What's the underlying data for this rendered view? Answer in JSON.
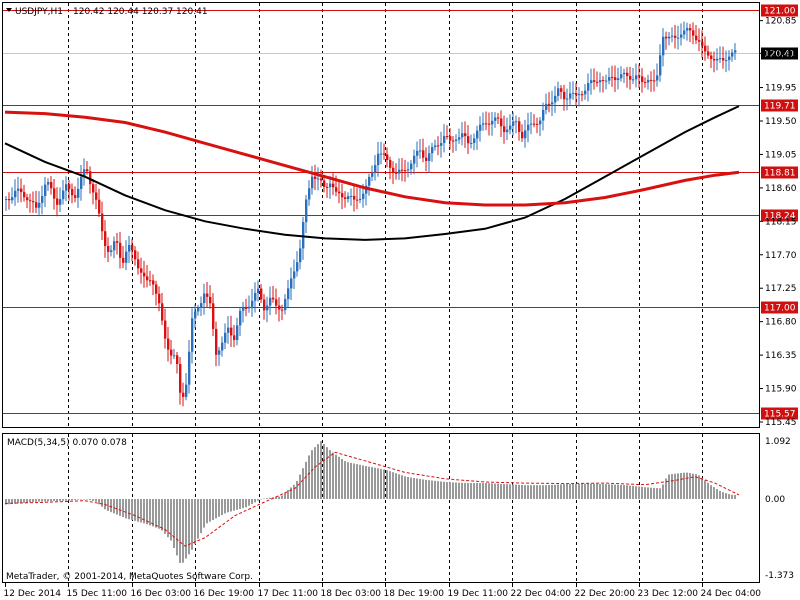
{
  "header": {
    "symbol": "USDJPY,H1",
    "ohlc": "120.42 120.44 120.37 120.41"
  },
  "copyright": "MetaTrader, © 2001-2014, MetaQuotes Software Corp.",
  "colors": {
    "bull": "#2a6fbd",
    "bear": "#d91010",
    "level": "#d01010",
    "ma_slow": "#000000",
    "ma_fast": "#d91010",
    "macd_hist": "#9a9a9a",
    "macd_signal": "#d91010"
  },
  "chart_data": [
    {
      "type": "candlestick",
      "title": "USDJPY,H1",
      "ylim": [
        115.45,
        121.0
      ],
      "y_ticks": [
        "120.85",
        "120.41",
        "119.95",
        "119.50",
        "119.05",
        "118.60",
        "118.15",
        "117.70",
        "117.25",
        "116.80",
        "116.35",
        "115.90",
        "115.45"
      ],
      "x_ticks": [
        "12 Dec 2014",
        "15 Dec 11:00",
        "16 Dec 03:00",
        "16 Dec 19:00",
        "17 Dec 11:00",
        "18 Dec 03:00",
        "18 Dec 19:00",
        "19 Dec 11:00",
        "22 Dec 04:00",
        "22 Dec 20:00",
        "23 Dec 12:00",
        "24 Dec 04:00"
      ],
      "horizontal_levels": [
        {
          "value": 121.0,
          "label": "121.00"
        },
        {
          "value": 119.71,
          "label": "119.71"
        },
        {
          "value": 118.81,
          "label": "118.81"
        },
        {
          "value": 118.24,
          "label": "118.24"
        },
        {
          "value": 117.0,
          "label": "117.00"
        },
        {
          "value": 115.57,
          "label": "115.57"
        }
      ],
      "current_price": {
        "value": 120.41,
        "label": "120.41"
      },
      "price_path": [
        [
          0,
          118.45
        ],
        [
          10,
          118.55
        ],
        [
          20,
          118.5
        ],
        [
          30,
          118.3
        ],
        [
          40,
          118.7
        ],
        [
          50,
          118.4
        ],
        [
          60,
          118.6
        ],
        [
          70,
          118.5
        ],
        [
          80,
          118.9
        ],
        [
          90,
          118.4
        ],
        [
          98,
          117.9
        ],
        [
          104,
          117.7
        ],
        [
          110,
          117.9
        ],
        [
          116,
          117.6
        ],
        [
          122,
          117.8
        ],
        [
          128,
          117.7
        ],
        [
          134,
          117.5
        ],
        [
          140,
          117.3
        ],
        [
          146,
          117.4
        ],
        [
          152,
          117.1
        ],
        [
          158,
          116.6
        ],
        [
          164,
          116.4
        ],
        [
          170,
          116.3
        ],
        [
          175,
          115.7
        ],
        [
          180,
          116.0
        ],
        [
          186,
          116.8
        ],
        [
          192,
          117.0
        ],
        [
          198,
          117.2
        ],
        [
          204,
          117.0
        ],
        [
          210,
          116.4
        ],
        [
          216,
          116.5
        ],
        [
          222,
          116.7
        ],
        [
          228,
          116.6
        ],
        [
          234,
          116.9
        ],
        [
          240,
          117.0
        ],
        [
          246,
          117.1
        ],
        [
          252,
          117.2
        ],
        [
          258,
          117.0
        ],
        [
          264,
          117.1
        ],
        [
          270,
          117.0
        ],
        [
          276,
          117.0
        ],
        [
          282,
          117.2
        ],
        [
          288,
          117.5
        ],
        [
          294,
          117.8
        ],
        [
          300,
          118.4
        ],
        [
          306,
          118.8
        ],
        [
          312,
          118.7
        ],
        [
          318,
          118.6
        ],
        [
          324,
          118.7
        ],
        [
          330,
          118.5
        ],
        [
          336,
          118.5
        ],
        [
          342,
          118.5
        ],
        [
          348,
          118.4
        ],
        [
          354,
          118.5
        ],
        [
          360,
          118.6
        ],
        [
          366,
          118.8
        ],
        [
          372,
          119.1
        ],
        [
          378,
          119.0
        ],
        [
          384,
          118.9
        ],
        [
          390,
          118.8
        ],
        [
          396,
          118.8
        ],
        [
          402,
          118.9
        ],
        [
          408,
          119.0
        ],
        [
          414,
          119.1
        ],
        [
          420,
          119.0
        ],
        [
          426,
          119.1
        ],
        [
          432,
          119.2
        ],
        [
          438,
          119.3
        ],
        [
          444,
          119.2
        ],
        [
          450,
          119.3
        ],
        [
          456,
          119.3
        ],
        [
          462,
          119.2
        ],
        [
          468,
          119.3
        ],
        [
          474,
          119.4
        ],
        [
          480,
          119.5
        ],
        [
          486,
          119.5
        ],
        [
          492,
          119.5
        ],
        [
          498,
          119.4
        ],
        [
          504,
          119.4
        ],
        [
          510,
          119.5
        ],
        [
          516,
          119.3
        ],
        [
          522,
          119.4
        ],
        [
          528,
          119.5
        ],
        [
          534,
          119.5
        ],
        [
          540,
          119.7
        ],
        [
          546,
          119.8
        ],
        [
          552,
          119.9
        ],
        [
          558,
          119.8
        ],
        [
          564,
          119.9
        ],
        [
          570,
          119.8
        ],
        [
          576,
          119.9
        ],
        [
          582,
          120.0
        ],
        [
          588,
          120.0
        ],
        [
          594,
          120.1
        ],
        [
          600,
          120.0
        ],
        [
          606,
          120.1
        ],
        [
          612,
          120.1
        ],
        [
          618,
          120.1
        ],
        [
          624,
          120.1
        ],
        [
          630,
          120.1
        ],
        [
          636,
          120.0
        ],
        [
          642,
          120.1
        ],
        [
          648,
          120.0
        ],
        [
          652,
          120.1
        ],
        [
          656,
          120.7
        ],
        [
          662,
          120.6
        ],
        [
          668,
          120.6
        ],
        [
          674,
          120.7
        ],
        [
          680,
          120.7
        ],
        [
          686,
          120.7
        ],
        [
          692,
          120.6
        ],
        [
          698,
          120.4
        ],
        [
          704,
          120.4
        ],
        [
          710,
          120.3
        ],
        [
          716,
          120.3
        ],
        [
          722,
          120.4
        ],
        [
          728,
          120.4
        ],
        [
          734,
          120.41
        ]
      ],
      "ma_slow": [
        [
          0,
          119.2
        ],
        [
          40,
          118.95
        ],
        [
          80,
          118.75
        ],
        [
          120,
          118.5
        ],
        [
          160,
          118.3
        ],
        [
          200,
          118.15
        ],
        [
          240,
          118.05
        ],
        [
          280,
          117.97
        ],
        [
          320,
          117.92
        ],
        [
          360,
          117.9
        ],
        [
          400,
          117.92
        ],
        [
          440,
          117.98
        ],
        [
          480,
          118.05
        ],
        [
          520,
          118.2
        ],
        [
          560,
          118.45
        ],
        [
          600,
          118.75
        ],
        [
          640,
          119.05
        ],
        [
          680,
          119.35
        ],
        [
          710,
          119.55
        ],
        [
          734,
          119.7
        ]
      ],
      "ma_fast": [
        [
          0,
          119.62
        ],
        [
          40,
          119.6
        ],
        [
          80,
          119.55
        ],
        [
          120,
          119.48
        ],
        [
          160,
          119.35
        ],
        [
          200,
          119.2
        ],
        [
          240,
          119.05
        ],
        [
          280,
          118.9
        ],
        [
          320,
          118.75
        ],
        [
          360,
          118.6
        ],
        [
          400,
          118.48
        ],
        [
          440,
          118.4
        ],
        [
          480,
          118.37
        ],
        [
          520,
          118.37
        ],
        [
          560,
          118.4
        ],
        [
          600,
          118.47
        ],
        [
          640,
          118.58
        ],
        [
          680,
          118.7
        ],
        [
          710,
          118.77
        ],
        [
          734,
          118.81
        ]
      ]
    },
    {
      "type": "bar",
      "title": "MACD(5,34,5) 0.070 0.078",
      "ylim": [
        -1.373,
        1.092
      ],
      "y_ticks": [
        "1.092",
        "0.00",
        "-1.373"
      ],
      "hist_path": [
        [
          0,
          -0.1
        ],
        [
          30,
          -0.05
        ],
        [
          60,
          -0.03
        ],
        [
          80,
          0.0
        ],
        [
          90,
          -0.05
        ],
        [
          100,
          -0.2
        ],
        [
          120,
          -0.35
        ],
        [
          140,
          -0.45
        ],
        [
          155,
          -0.55
        ],
        [
          165,
          -0.75
        ],
        [
          175,
          -1.2
        ],
        [
          185,
          -0.95
        ],
        [
          200,
          -0.45
        ],
        [
          220,
          -0.25
        ],
        [
          240,
          -0.15
        ],
        [
          255,
          0.0
        ],
        [
          275,
          0.05
        ],
        [
          290,
          0.3
        ],
        [
          305,
          0.9
        ],
        [
          315,
          1.09
        ],
        [
          325,
          0.9
        ],
        [
          340,
          0.7
        ],
        [
          360,
          0.62
        ],
        [
          380,
          0.55
        ],
        [
          400,
          0.42
        ],
        [
          420,
          0.36
        ],
        [
          440,
          0.32
        ],
        [
          460,
          0.3
        ],
        [
          480,
          0.3
        ],
        [
          500,
          0.28
        ],
        [
          520,
          0.26
        ],
        [
          540,
          0.26
        ],
        [
          560,
          0.28
        ],
        [
          580,
          0.29
        ],
        [
          600,
          0.28
        ],
        [
          620,
          0.26
        ],
        [
          640,
          0.22
        ],
        [
          655,
          0.2
        ],
        [
          662,
          0.46
        ],
        [
          680,
          0.5
        ],
        [
          692,
          0.46
        ],
        [
          705,
          0.26
        ],
        [
          715,
          0.14
        ],
        [
          725,
          0.08
        ],
        [
          734,
          0.07
        ]
      ],
      "signal_path": [
        [
          0,
          -0.08
        ],
        [
          40,
          -0.06
        ],
        [
          80,
          -0.03
        ],
        [
          100,
          -0.1
        ],
        [
          130,
          -0.3
        ],
        [
          160,
          -0.55
        ],
        [
          180,
          -0.85
        ],
        [
          200,
          -0.7
        ],
        [
          230,
          -0.3
        ],
        [
          260,
          -0.05
        ],
        [
          290,
          0.2
        ],
        [
          310,
          0.6
        ],
        [
          330,
          0.88
        ],
        [
          360,
          0.72
        ],
        [
          400,
          0.5
        ],
        [
          440,
          0.38
        ],
        [
          480,
          0.32
        ],
        [
          520,
          0.3
        ],
        [
          560,
          0.29
        ],
        [
          600,
          0.3
        ],
        [
          640,
          0.27
        ],
        [
          670,
          0.35
        ],
        [
          690,
          0.42
        ],
        [
          710,
          0.3
        ],
        [
          734,
          0.078
        ]
      ]
    }
  ]
}
